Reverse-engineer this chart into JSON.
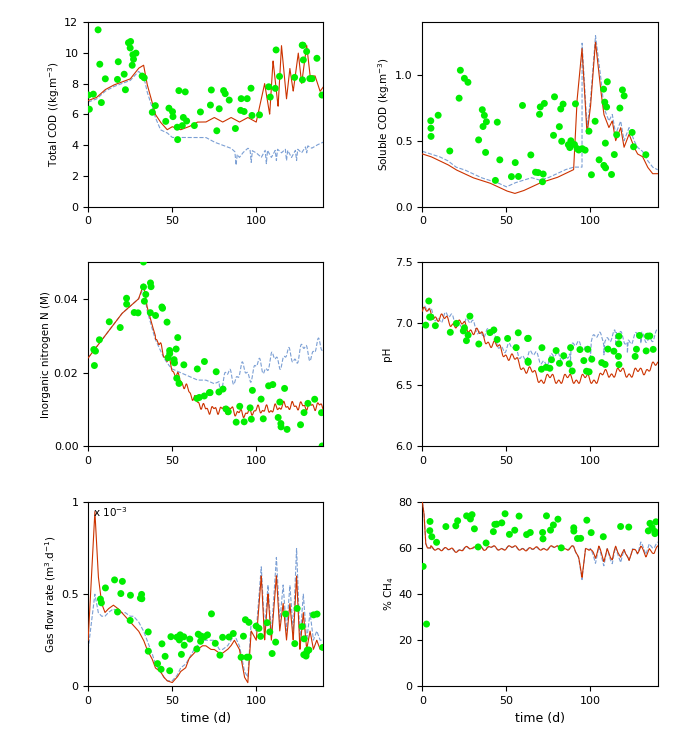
{
  "xlim": [
    0,
    140
  ],
  "xticks": [
    0,
    50,
    100
  ],
  "xlabel": "time (d)",
  "blue_color": "#7B9FD4",
  "red_color": "#CC3300",
  "green_color": "#00EE00",
  "dot_size": 25,
  "subplots": [
    {
      "ylabel": "Total COD ((kg.m$^{-3}$)",
      "ylim": [
        0,
        12
      ],
      "yticks": [
        0,
        2,
        4,
        6,
        8,
        10,
        12
      ]
    },
    {
      "ylabel": "Soluble COD (kg.m$^{-3}$)",
      "ylim": [
        0,
        1.4
      ],
      "yticks": [
        0,
        0.5,
        1.0
      ]
    },
    {
      "ylabel": "Inorganic nitrogen N (M)",
      "ylim": [
        0,
        0.05
      ],
      "yticks": [
        0,
        0.02,
        0.04
      ]
    },
    {
      "ylabel": "pH",
      "ylim": [
        6,
        7.5
      ],
      "yticks": [
        6,
        6.5,
        7.0,
        7.5
      ]
    },
    {
      "ylabel": "Gas flow rate (m$^3$.d$^{-1}$)",
      "ylim": [
        0,
        0.001
      ],
      "yticks": [
        0,
        0.0005,
        0.001
      ]
    },
    {
      "ylabel": "% CH$_4$",
      "ylim": [
        0,
        80
      ],
      "yticks": [
        0,
        20,
        40,
        60,
        80
      ]
    }
  ]
}
